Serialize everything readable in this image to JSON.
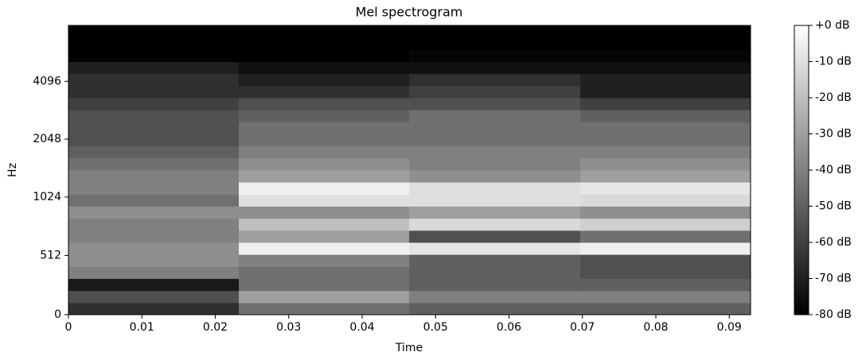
{
  "chart_data": {
    "type": "heatmap",
    "title": "Mel spectrogram",
    "x_label": "Time",
    "y_label": "Hz",
    "colormap": "gray",
    "yscale": "symlog",
    "linthresh": 1000,
    "logbase": 2,
    "x_edges": [
      0,
      0.0232,
      0.0464,
      0.0697,
      0.0929
    ],
    "y_edges": [
      0,
      104,
      208,
      313,
      417,
      521,
      625,
      729,
      833,
      938,
      1059,
      1224,
      1414,
      1634,
      1888,
      2181,
      2520,
      2911,
      3364,
      3886,
      4490,
      5187,
      5993,
      6924,
      8000
    ],
    "z": [
      [
        -65,
        -45,
        -50,
        -50
      ],
      [
        -55,
        -30,
        -40,
        -40
      ],
      [
        -72,
        -45,
        -50,
        -50
      ],
      [
        -40,
        -45,
        -50,
        -55
      ],
      [
        -35,
        -40,
        -50,
        -55
      ],
      [
        -35,
        -5,
        -8,
        -5
      ],
      [
        -40,
        -30,
        -55,
        -45
      ],
      [
        -40,
        -20,
        -12,
        -15
      ],
      [
        -35,
        -35,
        -30,
        -35
      ],
      [
        -45,
        -10,
        -10,
        -12
      ],
      [
        -40,
        -5,
        -10,
        -8
      ],
      [
        -40,
        -30,
        -35,
        -30
      ],
      [
        -45,
        -35,
        -40,
        -35
      ],
      [
        -50,
        -40,
        -40,
        -40
      ],
      [
        -55,
        -45,
        -45,
        -45
      ],
      [
        -55,
        -45,
        -45,
        -45
      ],
      [
        -55,
        -50,
        -45,
        -50
      ],
      [
        -60,
        -55,
        -55,
        -60
      ],
      [
        -65,
        -65,
        -60,
        -70
      ],
      [
        -65,
        -70,
        -65,
        -70
      ],
      [
        -70,
        -75,
        -75,
        -75
      ],
      [
        -80,
        -80,
        -78,
        -78
      ],
      [
        -80,
        -80,
        -80,
        -80
      ],
      [
        -80,
        -80,
        -80,
        -80
      ]
    ],
    "xlim": [
      0,
      0.0929
    ],
    "xticks": [
      0,
      0.01,
      0.02,
      0.03,
      0.04,
      0.05,
      0.06,
      0.07,
      0.08,
      0.09
    ],
    "ylim": [
      0,
      8000
    ],
    "yticks": [
      0,
      512,
      1024,
      2048,
      4096
    ],
    "zlim": [
      -80,
      0
    ],
    "zticks": [
      {
        "value": 0,
        "label": "+0 dB"
      },
      {
        "value": -10,
        "label": "-10 dB"
      },
      {
        "value": -20,
        "label": "-20 dB"
      },
      {
        "value": -30,
        "label": "-30 dB"
      },
      {
        "value": -40,
        "label": "-40 dB"
      },
      {
        "value": -50,
        "label": "-50 dB"
      },
      {
        "value": -60,
        "label": "-60 dB"
      },
      {
        "value": -70,
        "label": "-70 dB"
      },
      {
        "value": -80,
        "label": "-80 dB"
      }
    ]
  }
}
